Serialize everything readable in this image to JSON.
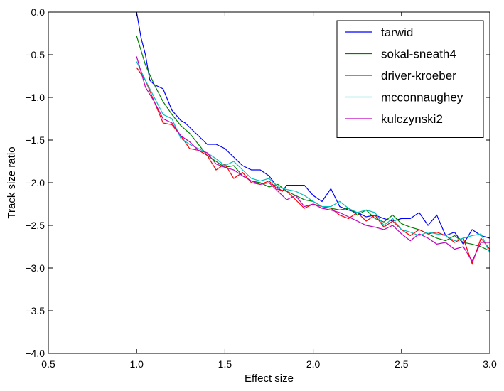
{
  "chart_data": {
    "type": "line",
    "title": "",
    "xlabel": "Effect size",
    "ylabel": "Track size ratio",
    "xlim": [
      0.5,
      3.0
    ],
    "ylim": [
      -4.0,
      0.0
    ],
    "xticks": [
      0.5,
      1.0,
      1.5,
      2.0,
      2.5,
      3.0
    ],
    "xtick_labels": [
      "0.5",
      "1.0",
      "1.5",
      "2.0",
      "2.5",
      "3.0"
    ],
    "yticks": [
      0.0,
      -0.5,
      -1.0,
      -1.5,
      -2.0,
      -2.5,
      -3.0,
      -3.5,
      -4.0
    ],
    "ytick_labels": [
      "0.0",
      "−0.5",
      "−1.0",
      "−1.5",
      "−2.0",
      "−2.5",
      "−3.0",
      "−3.5",
      "−4.0"
    ],
    "grid": false,
    "legend_position": "top-right",
    "series": [
      {
        "name": "tarwid",
        "color": "#0000ff",
        "x": [
          1.0,
          1.025,
          1.05,
          1.075,
          1.1,
          1.15,
          1.2,
          1.25,
          1.275,
          1.3,
          1.35,
          1.4,
          1.45,
          1.5,
          1.55,
          1.6,
          1.65,
          1.7,
          1.75,
          1.8,
          1.825,
          1.85,
          1.9,
          1.95,
          2.0,
          2.05,
          2.1,
          2.15,
          2.2,
          2.25,
          2.3,
          2.35,
          2.4,
          2.45,
          2.5,
          2.55,
          2.6,
          2.65,
          2.7,
          2.75,
          2.8,
          2.85,
          2.9,
          2.95,
          3.0
        ],
        "y": [
          0.0,
          -0.3,
          -0.5,
          -0.8,
          -0.85,
          -0.9,
          -1.15,
          -1.27,
          -1.3,
          -1.35,
          -1.45,
          -1.55,
          -1.55,
          -1.6,
          -1.7,
          -1.8,
          -1.85,
          -1.85,
          -1.92,
          -2.06,
          -2.1,
          -2.03,
          -2.03,
          -2.03,
          -2.15,
          -2.22,
          -2.07,
          -2.28,
          -2.32,
          -2.35,
          -2.4,
          -2.38,
          -2.42,
          -2.45,
          -2.42,
          -2.42,
          -2.35,
          -2.5,
          -2.38,
          -2.62,
          -2.58,
          -2.72,
          -2.55,
          -2.62,
          -2.65
        ]
      },
      {
        "name": "sokal-sneath4",
        "color": "#008000",
        "x": [
          1.0,
          1.05,
          1.1,
          1.15,
          1.2,
          1.25,
          1.3,
          1.35,
          1.4,
          1.45,
          1.5,
          1.55,
          1.6,
          1.65,
          1.7,
          1.75,
          1.8,
          1.85,
          1.9,
          1.95,
          2.0,
          2.05,
          2.1,
          2.15,
          2.2,
          2.25,
          2.3,
          2.35,
          2.4,
          2.45,
          2.5,
          2.55,
          2.6,
          2.65,
          2.7,
          2.75,
          2.8,
          2.85,
          2.9,
          2.95,
          3.0
        ],
        "y": [
          -0.28,
          -0.62,
          -0.85,
          -1.05,
          -1.2,
          -1.33,
          -1.42,
          -1.55,
          -1.68,
          -1.75,
          -1.82,
          -1.8,
          -1.92,
          -1.98,
          -2.0,
          -2.05,
          -2.02,
          -2.1,
          -2.15,
          -2.2,
          -2.22,
          -2.28,
          -2.3,
          -2.32,
          -2.3,
          -2.38,
          -2.32,
          -2.42,
          -2.46,
          -2.38,
          -2.48,
          -2.52,
          -2.55,
          -2.6,
          -2.65,
          -2.68,
          -2.62,
          -2.7,
          -2.72,
          -2.75,
          -2.8
        ]
      },
      {
        "name": "driver-kroeber",
        "color": "#ff0000",
        "x": [
          1.0,
          1.05,
          1.1,
          1.15,
          1.2,
          1.25,
          1.3,
          1.35,
          1.4,
          1.45,
          1.5,
          1.55,
          1.6,
          1.65,
          1.7,
          1.75,
          1.8,
          1.85,
          1.9,
          1.95,
          2.0,
          2.05,
          2.1,
          2.15,
          2.2,
          2.25,
          2.3,
          2.35,
          2.4,
          2.45,
          2.5,
          2.55,
          2.6,
          2.65,
          2.7,
          2.75,
          2.8,
          2.85,
          2.9,
          2.95,
          3.0
        ],
        "y": [
          -0.65,
          -0.8,
          -1.05,
          -1.3,
          -1.32,
          -1.45,
          -1.6,
          -1.62,
          -1.68,
          -1.85,
          -1.78,
          -1.95,
          -1.88,
          -2.0,
          -2.02,
          -1.98,
          -2.08,
          -2.1,
          -2.2,
          -2.3,
          -2.25,
          -2.28,
          -2.3,
          -2.38,
          -2.42,
          -2.35,
          -2.45,
          -2.38,
          -2.52,
          -2.45,
          -2.55,
          -2.62,
          -2.55,
          -2.6,
          -2.58,
          -2.62,
          -2.7,
          -2.65,
          -2.95,
          -2.65,
          -2.78
        ]
      },
      {
        "name": "mcconnaughey",
        "color": "#00bfbf",
        "x": [
          1.0,
          1.05,
          1.1,
          1.15,
          1.2,
          1.25,
          1.3,
          1.35,
          1.4,
          1.45,
          1.5,
          1.55,
          1.6,
          1.65,
          1.7,
          1.75,
          1.8,
          1.85,
          1.9,
          1.95,
          2.0,
          2.05,
          2.1,
          2.15,
          2.2,
          2.25,
          2.3,
          2.35,
          2.4,
          2.45,
          2.5,
          2.55,
          2.6,
          2.65,
          2.7,
          2.75,
          2.8,
          2.85,
          2.9,
          2.95,
          3.0
        ],
        "y": [
          -0.58,
          -0.8,
          -1.0,
          -1.2,
          -1.25,
          -1.48,
          -1.55,
          -1.6,
          -1.65,
          -1.72,
          -1.8,
          -1.75,
          -1.85,
          -1.95,
          -1.98,
          -1.95,
          -2.05,
          -2.08,
          -2.1,
          -2.15,
          -2.22,
          -2.28,
          -2.28,
          -2.22,
          -2.3,
          -2.35,
          -2.32,
          -2.35,
          -2.5,
          -2.42,
          -2.55,
          -2.58,
          -2.62,
          -2.58,
          -2.6,
          -2.62,
          -2.68,
          -2.65,
          -2.62,
          -2.6,
          -2.82
        ]
      },
      {
        "name": "kulczynski2",
        "color": "#bf00bf",
        "x": [
          1.0,
          1.05,
          1.1,
          1.15,
          1.2,
          1.25,
          1.3,
          1.35,
          1.4,
          1.45,
          1.5,
          1.55,
          1.6,
          1.65,
          1.7,
          1.75,
          1.8,
          1.85,
          1.9,
          1.95,
          2.0,
          2.05,
          2.1,
          2.15,
          2.2,
          2.25,
          2.3,
          2.35,
          2.4,
          2.45,
          2.5,
          2.55,
          2.6,
          2.65,
          2.7,
          2.75,
          2.8,
          2.85,
          2.9,
          2.95,
          3.0
        ],
        "y": [
          -0.52,
          -0.88,
          -1.05,
          -1.25,
          -1.3,
          -1.45,
          -1.52,
          -1.62,
          -1.65,
          -1.78,
          -1.82,
          -1.85,
          -1.92,
          -1.98,
          -2.02,
          -2.0,
          -2.1,
          -2.2,
          -2.15,
          -2.28,
          -2.25,
          -2.3,
          -2.32,
          -2.35,
          -2.4,
          -2.45,
          -2.5,
          -2.52,
          -2.55,
          -2.5,
          -2.6,
          -2.68,
          -2.6,
          -2.65,
          -2.72,
          -2.7,
          -2.78,
          -2.75,
          -2.92,
          -2.7,
          -2.7
        ]
      }
    ]
  }
}
